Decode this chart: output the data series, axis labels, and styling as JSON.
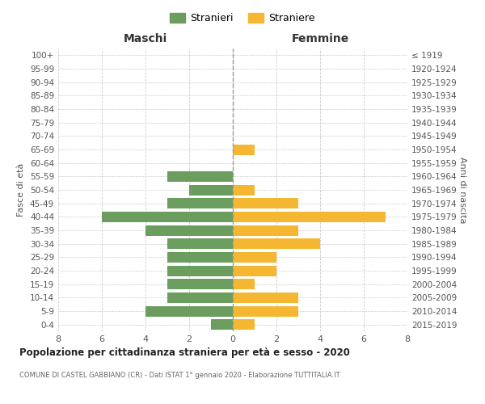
{
  "age_groups": [
    "0-4",
    "5-9",
    "10-14",
    "15-19",
    "20-24",
    "25-29",
    "30-34",
    "35-39",
    "40-44",
    "45-49",
    "50-54",
    "55-59",
    "60-64",
    "65-69",
    "70-74",
    "75-79",
    "80-84",
    "85-89",
    "90-94",
    "95-99",
    "100+"
  ],
  "birth_years": [
    "2015-2019",
    "2010-2014",
    "2005-2009",
    "2000-2004",
    "1995-1999",
    "1990-1994",
    "1985-1989",
    "1980-1984",
    "1975-1979",
    "1970-1974",
    "1965-1969",
    "1960-1964",
    "1955-1959",
    "1950-1954",
    "1945-1949",
    "1940-1944",
    "1935-1939",
    "1930-1934",
    "1925-1929",
    "1920-1924",
    "≤ 1919"
  ],
  "maschi": [
    1,
    4,
    3,
    3,
    3,
    3,
    3,
    4,
    6,
    3,
    2,
    3,
    0,
    0,
    0,
    0,
    0,
    0,
    0,
    0,
    0
  ],
  "femmine": [
    1,
    3,
    3,
    1,
    2,
    2,
    4,
    3,
    7,
    3,
    1,
    0,
    0,
    1,
    0,
    0,
    0,
    0,
    0,
    0,
    0
  ],
  "color_maschi": "#6b9e5e",
  "color_femmine": "#f5b731",
  "title_main": "Popolazione per cittadinanza straniera per età e sesso - 2020",
  "title_sub": "COMUNE DI CASTEL GABBIANO (CR) - Dati ISTAT 1° gennaio 2020 - Elaborazione TUTTITALIA.IT",
  "legend_maschi": "Stranieri",
  "legend_femmine": "Straniere",
  "label_maschi": "Maschi",
  "label_femmine": "Femmine",
  "ylabel_left": "Fasce di età",
  "ylabel_right": "Anni di nascita",
  "xlim": 8,
  "background_color": "#ffffff",
  "grid_color": "#cccccc"
}
